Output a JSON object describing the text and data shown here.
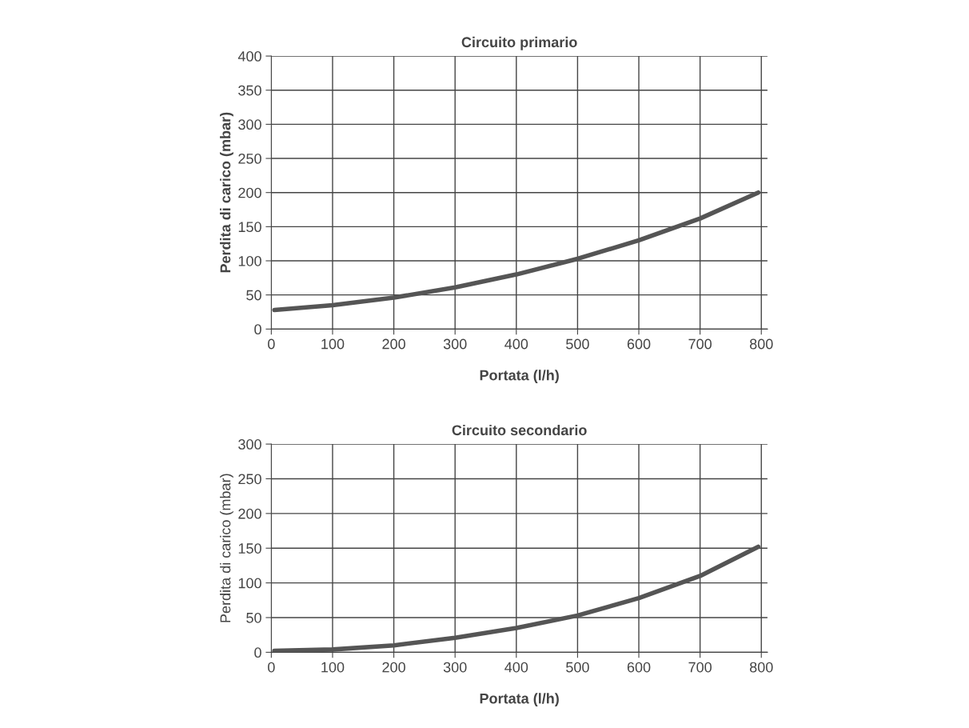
{
  "chart_data": [
    {
      "type": "line",
      "title": "Circuito primario",
      "xlabel": "Portata (l/h)",
      "ylabel": "Perdita di carico (mbar)",
      "series": [
        {
          "color": "#555555",
          "x": [
            5,
            100,
            200,
            300,
            400,
            500,
            600,
            700,
            795
          ],
          "values": [
            28,
            35,
            46,
            61,
            80,
            103,
            130,
            162,
            200
          ]
        }
      ],
      "xlim": [
        0,
        810
      ],
      "xticks": [
        0,
        100,
        200,
        300,
        400,
        500,
        600,
        700,
        800
      ],
      "ylim": [
        0,
        400
      ],
      "yticks": [
        0,
        50,
        100,
        150,
        200,
        250,
        300,
        350,
        400
      ],
      "grid": true
    },
    {
      "type": "line",
      "title": "Circuito secondario",
      "xlabel": "Portata (l/h)",
      "ylabel": "Perdita di carico (mbar)",
      "series": [
        {
          "color": "#555555",
          "x": [
            5,
            100,
            200,
            300,
            400,
            500,
            600,
            700,
            795
          ],
          "values": [
            2,
            4,
            10,
            21,
            35,
            53,
            78,
            110,
            152
          ]
        }
      ],
      "xlim": [
        0,
        810
      ],
      "xticks": [
        0,
        100,
        200,
        300,
        400,
        500,
        600,
        700,
        800
      ],
      "ylim": [
        0,
        300
      ],
      "yticks": [
        0,
        50,
        100,
        150,
        200,
        250,
        300
      ],
      "grid": true
    }
  ]
}
